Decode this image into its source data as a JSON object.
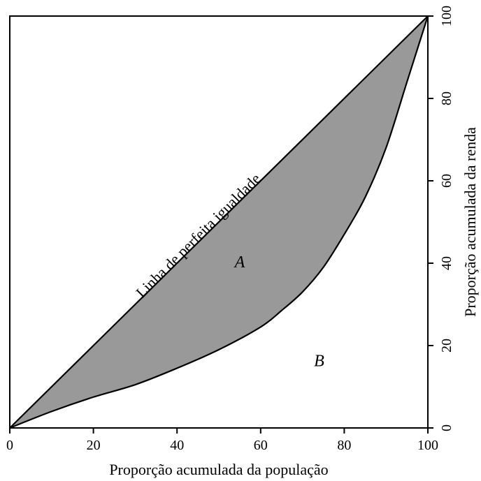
{
  "chart_data": {
    "type": "area",
    "xlabel": "Proporção acumulada da população",
    "ylabel": "Proporção acumulada da renda",
    "xlim": [
      0,
      100
    ],
    "ylim": [
      0,
      100
    ],
    "x_ticks": [
      "0",
      "20",
      "40",
      "60",
      "80",
      "100"
    ],
    "y_ticks": [
      "0",
      "20",
      "40",
      "60",
      "80",
      "100"
    ],
    "y_axis_side": "right",
    "grid": false,
    "fill_color": "#999999",
    "equality_line": {
      "x": [
        0,
        100
      ],
      "y": [
        0,
        100
      ]
    },
    "lorenz_curve": {
      "x": [
        0,
        10,
        20,
        30,
        40,
        50,
        60,
        65,
        70,
        75,
        80,
        85,
        90,
        95,
        100
      ],
      "y": [
        0,
        4,
        7.5,
        10.5,
        14.5,
        19,
        24.5,
        28.5,
        33,
        39,
        47,
        56,
        68,
        84,
        100
      ]
    },
    "annotations": [
      {
        "text": "Linha de perfeita igualdade",
        "x": 30,
        "y": 30
      },
      {
        "text": "A",
        "x": 55,
        "y": 39
      },
      {
        "text": "B",
        "x": 74,
        "y": 15
      }
    ]
  }
}
